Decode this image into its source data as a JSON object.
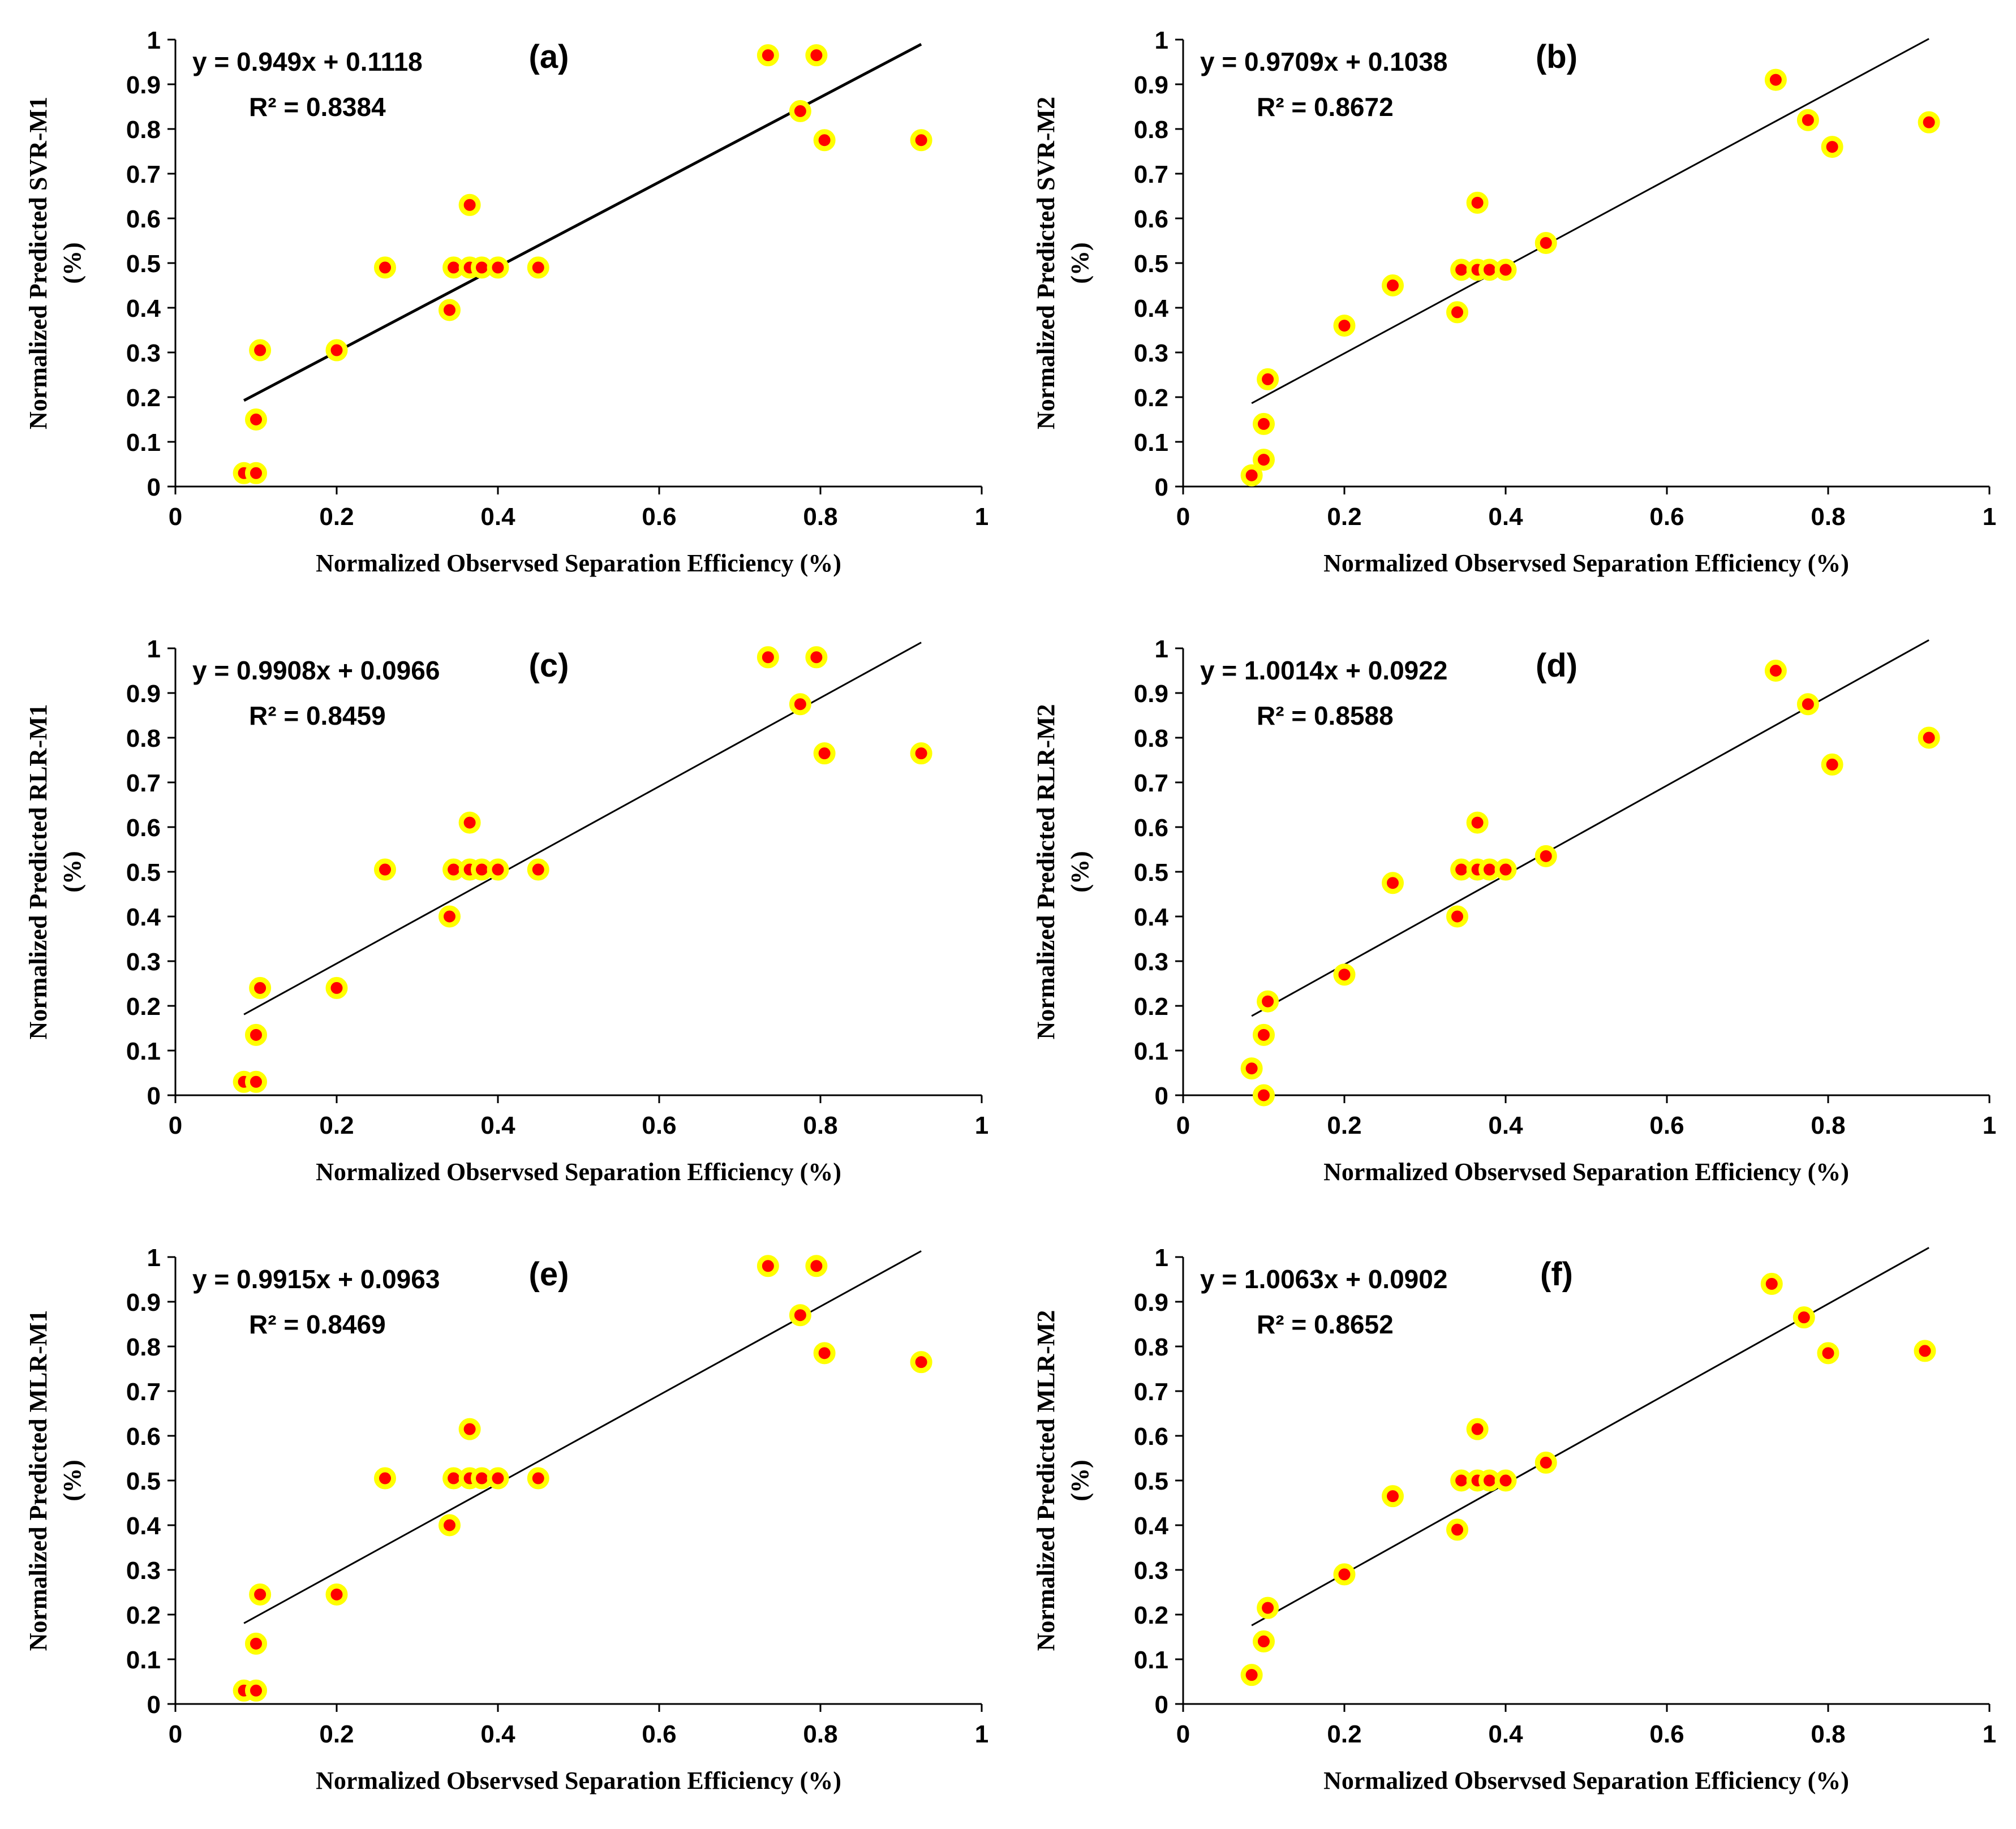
{
  "colors": {
    "marker_fill": "#ff0000",
    "marker_edge": "#ffff00",
    "line": "#000000",
    "axis": "#000000"
  },
  "chart_data": [
    {
      "type": "scatter",
      "panel_label": "(a)",
      "equation": "y = 0.949x + 0.1118",
      "r2_text": "R² = 0.8384",
      "xlabel": "Normalized  Observsed Separation Efficiency (%)",
      "ylabel_line1": "Normalized  Predicted SVR-M1",
      "ylabel_line2": "(%)",
      "xlim": [
        0,
        1
      ],
      "ylim": [
        0,
        1
      ],
      "xticks": [
        "0",
        "0.2",
        "0.4",
        "0.6",
        "0.8",
        "1"
      ],
      "yticks": [
        "0",
        "0.1",
        "0.2",
        "0.3",
        "0.4",
        "0.5",
        "0.6",
        "0.7",
        "0.8",
        "0.9",
        "1"
      ],
      "trend": {
        "slope": 0.949,
        "intercept": 0.1118,
        "x0": 0.085,
        "x1": 0.925
      },
      "points": [
        [
          0.085,
          0.03
        ],
        [
          0.1,
          0.03
        ],
        [
          0.1,
          0.15
        ],
        [
          0.105,
          0.305
        ],
        [
          0.2,
          0.305
        ],
        [
          0.26,
          0.49
        ],
        [
          0.34,
          0.395
        ],
        [
          0.345,
          0.49
        ],
        [
          0.365,
          0.49
        ],
        [
          0.365,
          0.63
        ],
        [
          0.38,
          0.49
        ],
        [
          0.4,
          0.49
        ],
        [
          0.45,
          0.49
        ],
        [
          0.735,
          0.965
        ],
        [
          0.775,
          0.84
        ],
        [
          0.795,
          0.965
        ],
        [
          0.805,
          0.775
        ],
        [
          0.925,
          0.775
        ]
      ]
    },
    {
      "type": "scatter",
      "panel_label": "(b)",
      "equation": "y = 0.9709x + 0.1038",
      "r2_text": "R² = 0.8672",
      "xlabel": "Normalized  Observsed Separation Efficiency (%)",
      "ylabel_line1": "Normalized  Predicted SVR-M2",
      "ylabel_line2": "(%)",
      "xlim": [
        0,
        1
      ],
      "ylim": [
        0,
        1
      ],
      "xticks": [
        "0",
        "0.2",
        "0.4",
        "0.6",
        "0.8",
        "1"
      ],
      "yticks": [
        "0",
        "0.1",
        "0.2",
        "0.3",
        "0.4",
        "0.5",
        "0.6",
        "0.7",
        "0.8",
        "0.9",
        "1"
      ],
      "trend": {
        "slope": 0.9709,
        "intercept": 0.1038,
        "x0": 0.085,
        "x1": 0.925
      },
      "points": [
        [
          0.085,
          0.025
        ],
        [
          0.1,
          0.06
        ],
        [
          0.1,
          0.14
        ],
        [
          0.105,
          0.24
        ],
        [
          0.2,
          0.36
        ],
        [
          0.26,
          0.45
        ],
        [
          0.34,
          0.39
        ],
        [
          0.345,
          0.485
        ],
        [
          0.365,
          0.485
        ],
        [
          0.365,
          0.635
        ],
        [
          0.38,
          0.485
        ],
        [
          0.4,
          0.485
        ],
        [
          0.45,
          0.545
        ],
        [
          0.735,
          0.91
        ],
        [
          0.775,
          0.82
        ],
        [
          0.805,
          0.76
        ],
        [
          0.925,
          0.815
        ]
      ]
    },
    {
      "type": "scatter",
      "panel_label": "(c)",
      "equation": "y = 0.9908x + 0.0966",
      "r2_text": "R² = 0.8459",
      "xlabel": "Normalized  Observsed Separation Efficiency (%)",
      "ylabel_line1": "Normalized  Predicted RLR-M1",
      "ylabel_line2": "(%)",
      "xlim": [
        0,
        1
      ],
      "ylim": [
        0,
        1
      ],
      "xticks": [
        "0",
        "0.2",
        "0.4",
        "0.6",
        "0.8",
        "1"
      ],
      "yticks": [
        "0",
        "0.1",
        "0.2",
        "0.3",
        "0.4",
        "0.5",
        "0.6",
        "0.7",
        "0.8",
        "0.9",
        "1"
      ],
      "trend": {
        "slope": 0.9908,
        "intercept": 0.0966,
        "x0": 0.085,
        "x1": 0.925
      },
      "points": [
        [
          0.085,
          0.03
        ],
        [
          0.1,
          0.03
        ],
        [
          0.1,
          0.135
        ],
        [
          0.105,
          0.24
        ],
        [
          0.2,
          0.24
        ],
        [
          0.26,
          0.505
        ],
        [
          0.34,
          0.4
        ],
        [
          0.345,
          0.505
        ],
        [
          0.365,
          0.505
        ],
        [
          0.365,
          0.61
        ],
        [
          0.38,
          0.505
        ],
        [
          0.4,
          0.505
        ],
        [
          0.45,
          0.505
        ],
        [
          0.735,
          0.98
        ],
        [
          0.775,
          0.875
        ],
        [
          0.795,
          0.98
        ],
        [
          0.805,
          0.765
        ],
        [
          0.925,
          0.765
        ]
      ]
    },
    {
      "type": "scatter",
      "panel_label": "(d)",
      "equation": "y = 1.0014x + 0.0922",
      "r2_text": "R² = 0.8588",
      "xlabel": "Normalized  Observsed Separation Efficiency (%)",
      "ylabel_line1": "Normalized  Predicted RLR-M2",
      "ylabel_line2": "(%)",
      "xlim": [
        0,
        1
      ],
      "ylim": [
        0,
        1
      ],
      "xticks": [
        "0",
        "0.2",
        "0.4",
        "0.6",
        "0.8",
        "1"
      ],
      "yticks": [
        "0",
        "0.1",
        "0.2",
        "0.3",
        "0.4",
        "0.5",
        "0.6",
        "0.7",
        "0.8",
        "0.9",
        "1"
      ],
      "trend": {
        "slope": 1.0014,
        "intercept": 0.0922,
        "x0": 0.085,
        "x1": 0.925
      },
      "points": [
        [
          0.085,
          0.06
        ],
        [
          0.1,
          0.0
        ],
        [
          0.1,
          0.135
        ],
        [
          0.105,
          0.21
        ],
        [
          0.2,
          0.27
        ],
        [
          0.26,
          0.475
        ],
        [
          0.34,
          0.4
        ],
        [
          0.345,
          0.505
        ],
        [
          0.365,
          0.505
        ],
        [
          0.365,
          0.61
        ],
        [
          0.38,
          0.505
        ],
        [
          0.4,
          0.505
        ],
        [
          0.45,
          0.535
        ],
        [
          0.735,
          0.95
        ],
        [
          0.775,
          0.875
        ],
        [
          0.805,
          0.74
        ],
        [
          0.925,
          0.8
        ]
      ]
    },
    {
      "type": "scatter",
      "panel_label": "(e)",
      "equation": "y = 0.9915x + 0.0963",
      "r2_text": "R² = 0.8469",
      "xlabel": "Normalized  Observsed Separation Efficiency (%)",
      "ylabel_line1": "Normalized  Predicted MLR-M1",
      "ylabel_line2": "(%)",
      "xlim": [
        0,
        1
      ],
      "ylim": [
        0,
        1
      ],
      "xticks": [
        "0",
        "0.2",
        "0.4",
        "0.6",
        "0.8",
        "1"
      ],
      "yticks": [
        "0",
        "0.1",
        "0.2",
        "0.3",
        "0.4",
        "0.5",
        "0.6",
        "0.7",
        "0.8",
        "0.9",
        "1"
      ],
      "trend": {
        "slope": 0.9915,
        "intercept": 0.0963,
        "x0": 0.085,
        "x1": 0.925
      },
      "points": [
        [
          0.085,
          0.03
        ],
        [
          0.1,
          0.03
        ],
        [
          0.1,
          0.135
        ],
        [
          0.105,
          0.245
        ],
        [
          0.2,
          0.245
        ],
        [
          0.26,
          0.505
        ],
        [
          0.34,
          0.4
        ],
        [
          0.345,
          0.505
        ],
        [
          0.365,
          0.505
        ],
        [
          0.365,
          0.615
        ],
        [
          0.38,
          0.505
        ],
        [
          0.4,
          0.505
        ],
        [
          0.45,
          0.505
        ],
        [
          0.735,
          0.98
        ],
        [
          0.775,
          0.87
        ],
        [
          0.795,
          0.98
        ],
        [
          0.805,
          0.785
        ],
        [
          0.925,
          0.765
        ]
      ]
    },
    {
      "type": "scatter",
      "panel_label": "(f)",
      "equation": "y = 1.0063x + 0.0902",
      "r2_text": "R² = 0.8652",
      "xlabel": "Normalized  Observsed Separation Efficiency (%)",
      "ylabel_line1": "Normalized  Predicted MLR-M2",
      "ylabel_line2": "(%)",
      "xlim": [
        0,
        1
      ],
      "ylim": [
        0,
        1
      ],
      "xticks": [
        "0",
        "0.2",
        "0.4",
        "0.6",
        "0.8",
        "1"
      ],
      "yticks": [
        "0",
        "0.1",
        "0.2",
        "0.3",
        "0.4",
        "0.5",
        "0.6",
        "0.7",
        "0.8",
        "0.9",
        "1"
      ],
      "trend": {
        "slope": 1.0063,
        "intercept": 0.0902,
        "x0": 0.085,
        "x1": 0.925
      },
      "points": [
        [
          0.085,
          0.065
        ],
        [
          0.1,
          0.14
        ],
        [
          0.105,
          0.215
        ],
        [
          0.2,
          0.29
        ],
        [
          0.26,
          0.465
        ],
        [
          0.34,
          0.39
        ],
        [
          0.345,
          0.5
        ],
        [
          0.365,
          0.5
        ],
        [
          0.365,
          0.615
        ],
        [
          0.38,
          0.5
        ],
        [
          0.4,
          0.5
        ],
        [
          0.45,
          0.54
        ],
        [
          0.73,
          0.94
        ],
        [
          0.77,
          0.865
        ],
        [
          0.8,
          0.785
        ],
        [
          0.92,
          0.79
        ]
      ]
    }
  ]
}
